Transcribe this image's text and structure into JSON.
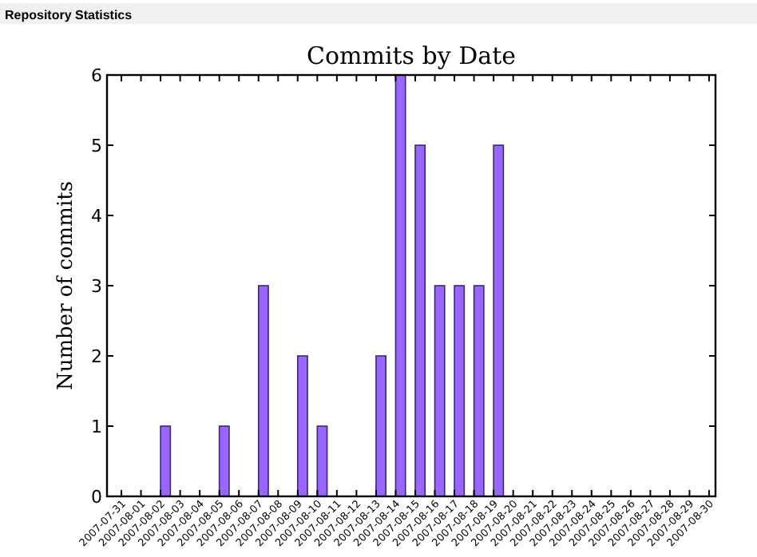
{
  "chart_data": {
    "type": "bar",
    "title": "Commits by Date",
    "ylabel": "Number of commits",
    "annotations": [
      "Repository Statistics"
    ],
    "categories": [
      "2007-07-31",
      "2007-08-01",
      "2007-08-02",
      "2007-08-03",
      "2007-08-04",
      "2007-08-05",
      "2007-08-06",
      "2007-08-07",
      "2007-08-08",
      "2007-08-09",
      "2007-08-10",
      "2007-08-11",
      "2007-08-12",
      "2007-08-13",
      "2007-08-14",
      "2007-08-15",
      "2007-08-16",
      "2007-08-17",
      "2007-08-18",
      "2007-08-19",
      "2007-08-20",
      "2007-08-21",
      "2007-08-22",
      "2007-08-23",
      "2007-08-24",
      "2007-08-25",
      "2007-08-26",
      "2007-08-27",
      "2007-08-28",
      "2007-08-29",
      "2007-08-30"
    ],
    "values": [
      0,
      0,
      1,
      0,
      0,
      1,
      0,
      3,
      0,
      2,
      1,
      0,
      0,
      2,
      6,
      5,
      3,
      3,
      3,
      5,
      0,
      0,
      0,
      0,
      0,
      0,
      0,
      0,
      0,
      0,
      0
    ],
    "color": "#9966ff",
    "ylim": [
      0,
      6
    ],
    "yticks": [
      0,
      1,
      2,
      3,
      4,
      5,
      6
    ],
    "grid": false
  }
}
